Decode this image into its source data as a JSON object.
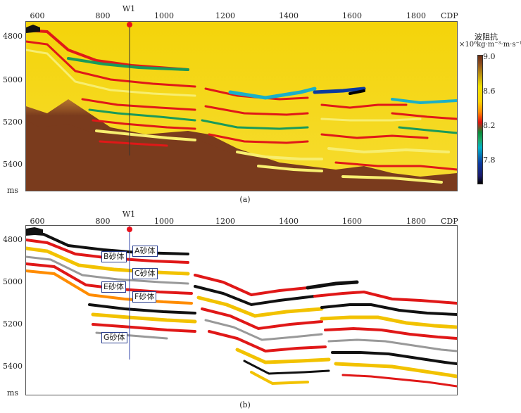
{
  "well": "W1",
  "x_axis": {
    "unit_label": "CDP",
    "ticks": [
      "600",
      "800",
      "1000",
      "1200",
      "1400",
      "1600",
      "1800"
    ]
  },
  "y_axis": {
    "unit_label": "ms",
    "ticks": [
      "4800",
      "5000",
      "5200",
      "5400"
    ]
  },
  "panel_a": {
    "caption": "(a)"
  },
  "panel_b": {
    "caption": "(b)"
  },
  "colorbar": {
    "title": "波阻抗",
    "unit": "×10⁶kg·m⁻³·m·s⁻¹",
    "ticks": [
      "9.0",
      "8.6",
      "8.2",
      "7.8"
    ]
  },
  "sand_bodies": [
    "A砂体",
    "B砂体",
    "C砂体",
    "E砂体",
    "F砂体",
    "G砂体"
  ],
  "colors": {
    "background_yellow": "#f4d40a",
    "deep_brown": "#7a3b1d",
    "well_marker": "#e8101a"
  }
}
